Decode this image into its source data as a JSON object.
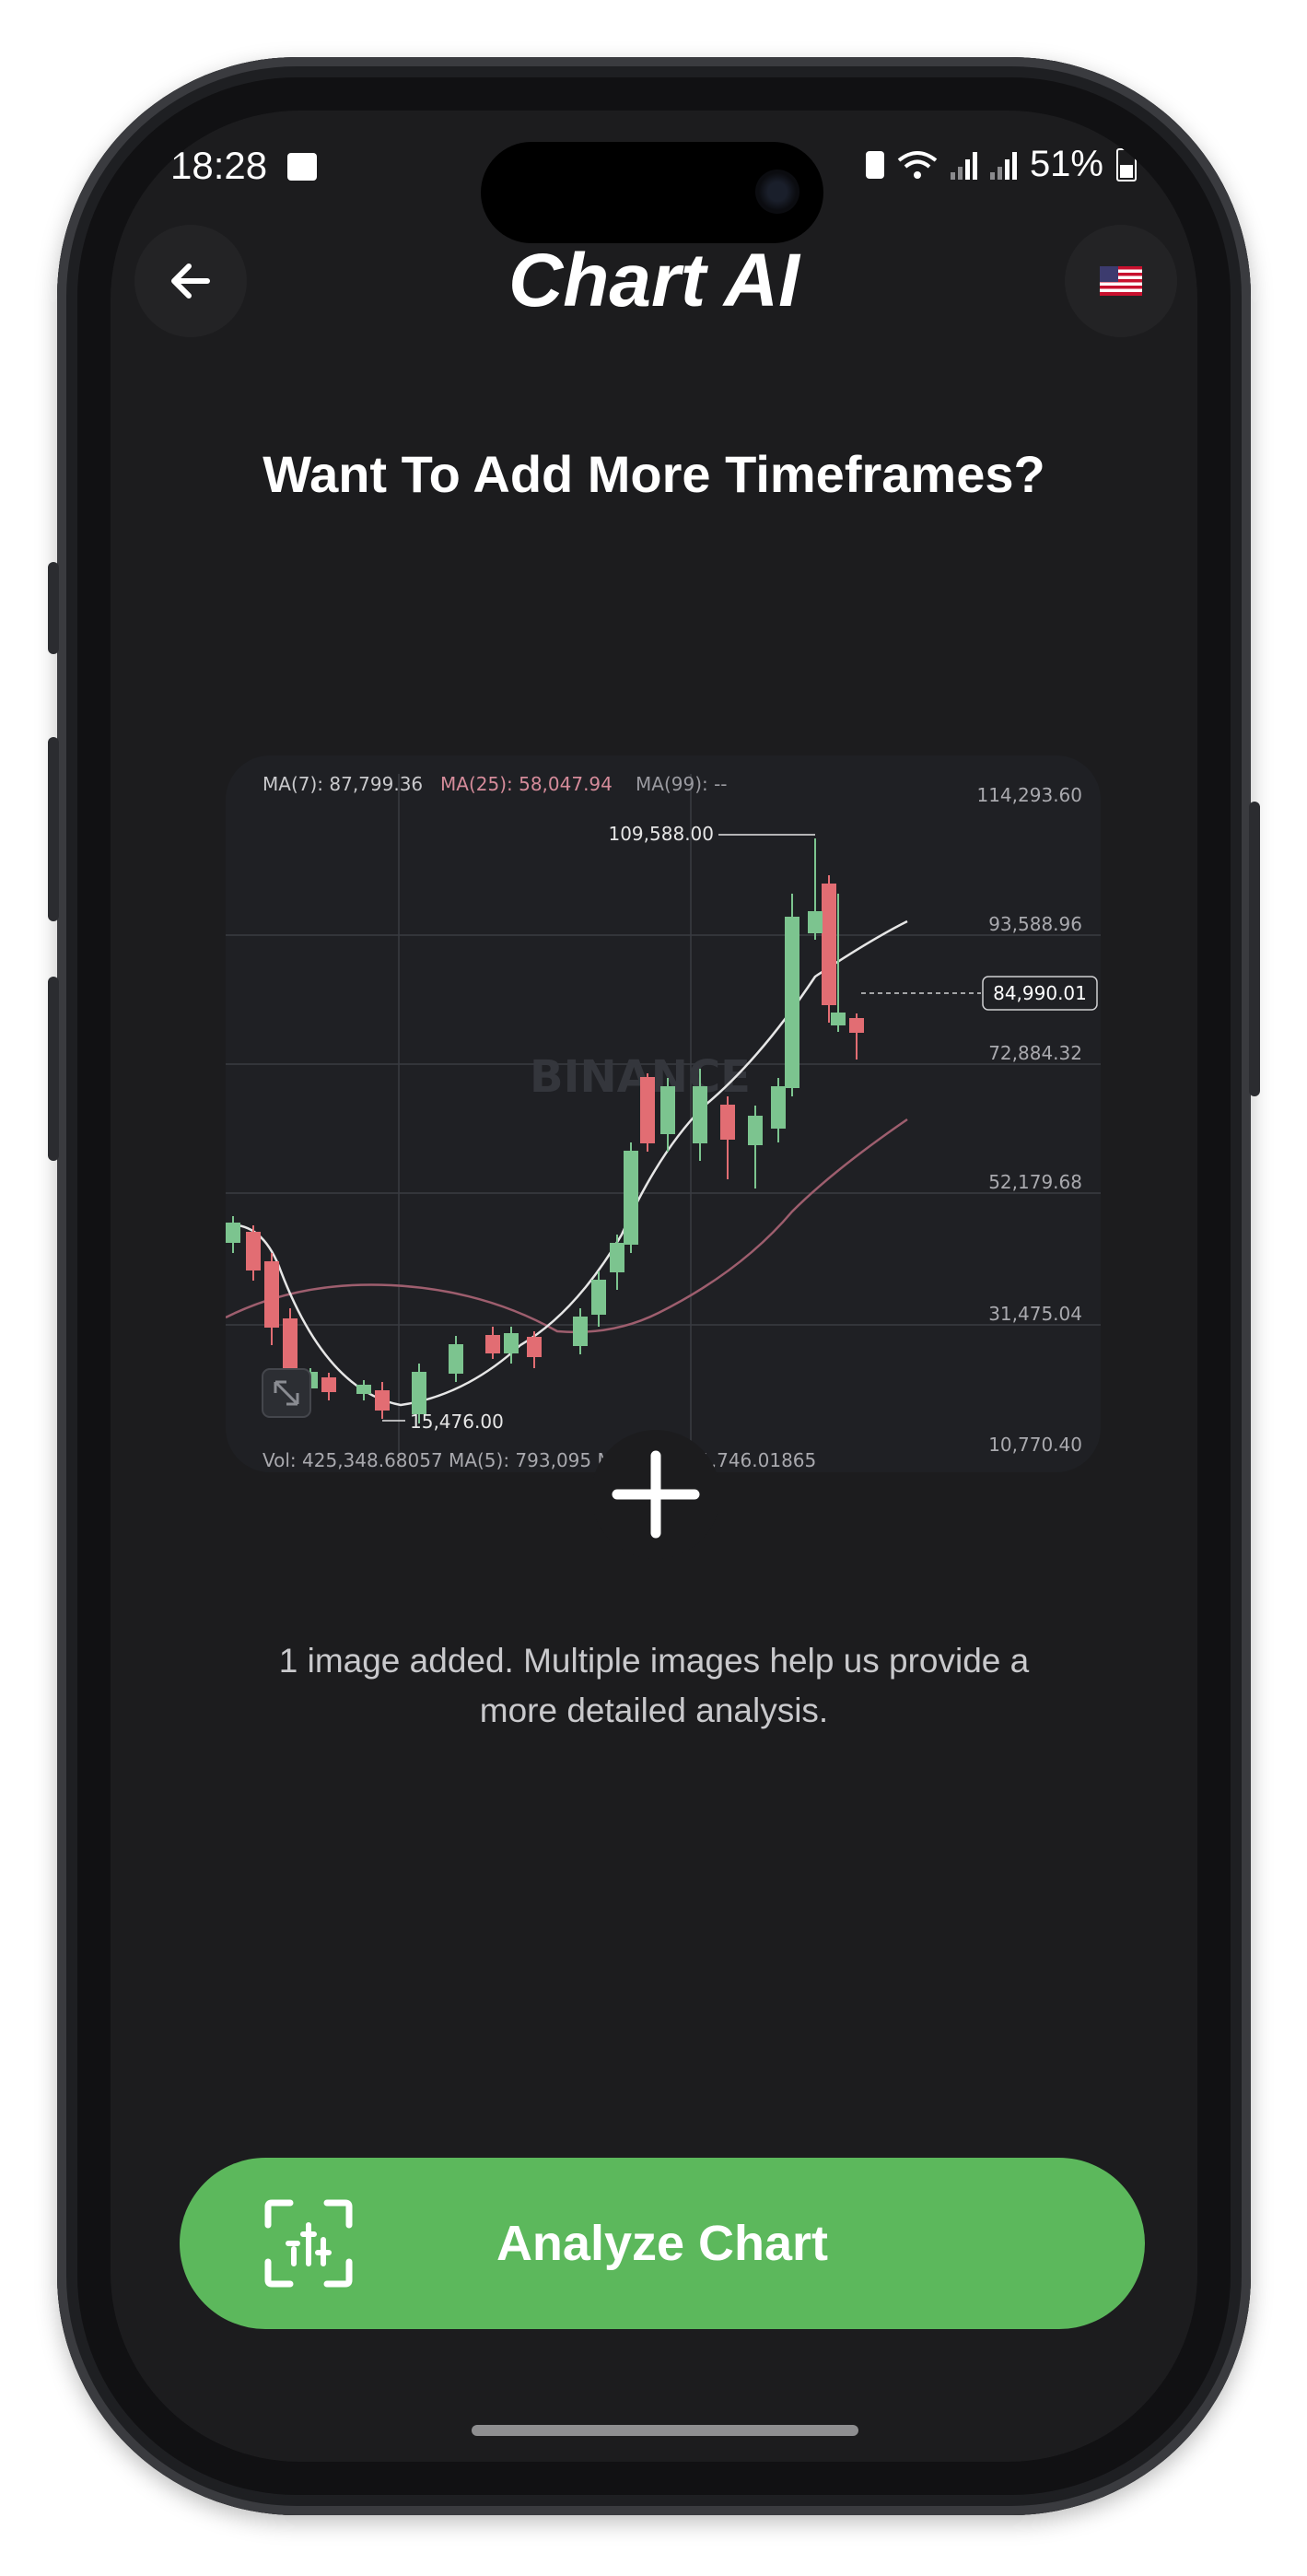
{
  "status_bar": {
    "time": "18:28",
    "battery": "51%"
  },
  "header": {
    "title": "Chart AI",
    "back_icon": "arrow-left-icon",
    "language_icon": "us-flag-icon"
  },
  "headline": "Want To Add More Timeframes?",
  "chart_image": {
    "indicators": {
      "ma7": "MA(7): 87,799.36",
      "ma25": "MA(25): 58,047.94",
      "ma99": "MA(99): --"
    },
    "price_labels": [
      "114,293.60",
      "93,588.96",
      "72,884.32",
      "52,179.68",
      "31,475.04",
      "10,770.40"
    ],
    "high_label": "109,588.00",
    "low_label": "15,476.00",
    "current_price": "84,990.01",
    "watermark": "BINANCE",
    "volume_row": "Vol: 425,348.68057   MA(5): 793,095   MA(10): 871,746.01865"
  },
  "add_button_icon": "plus-icon",
  "info_text": "1 image added. Multiple images help us provide a more detailed analysis.",
  "analyze_button": {
    "label": "Analyze Chart",
    "icon": "chart-scan-icon"
  },
  "colors": {
    "background": "#1c1c1e",
    "accent_green": "#5cb85c",
    "candle_up": "#7cc48f",
    "candle_down": "#e26d73"
  }
}
